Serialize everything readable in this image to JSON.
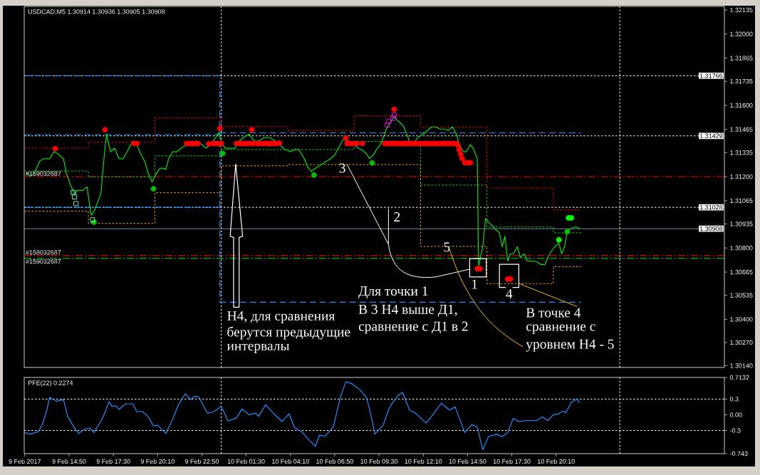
{
  "chart_data": [
    {
      "type": "line",
      "title": "USDCAD,M5  1.30914 1.30936 1.30905 1.30908",
      "xlim": [
        "2017-02-09T12:08",
        "2017-02-11T06:18"
      ],
      "ylim": [
        1.3013,
        1.32155
      ],
      "yticks": [
        1.32135,
        {
          "value": 1.32,
          "label": "1.32000"
        },
        1.31865,
        1.31735,
        {
          "value": 1.316,
          "label": "1.31600"
        },
        1.31465,
        1.31335,
        {
          "value": 1.312,
          "label": "1.31200"
        },
        1.31065,
        1.30935,
        {
          "value": 1.308,
          "label": "1.30800"
        },
        1.30665,
        1.30535,
        {
          "value": 1.304,
          "label": "1.30400"
        },
        {
          "value": 1.3027,
          "label": "1.30270"
        },
        {
          "value": 1.3014,
          "label": "1.30140"
        }
      ],
      "tick_labels": "y",
      "series": [
        {
          "type": "step",
          "color": "#ff0000",
          "line_style": "dotted",
          "x": [
            "2017-02-09T12:10",
            "2017-02-09T16:00",
            "2017-02-09T20:00",
            "2017-02-10T00:00",
            "2017-02-10T04:00",
            "2017-02-10T08:00",
            "2017-02-10T12:00",
            "2017-02-10T16:00",
            "2017-02-10T20:00",
            "2017-02-10T21:40"
          ],
          "values": [
            1.3136,
            1.31393,
            1.31529,
            1.31481,
            1.31459,
            1.31542,
            1.31479,
            1.31136,
            1.31013,
            1.31013
          ]
        },
        {
          "type": "step",
          "color": "#00e000",
          "line_style": "dotted",
          "x": [
            "2017-02-09T12:10",
            "2017-02-09T16:00",
            "2017-02-09T20:00",
            "2017-02-10T00:00",
            "2017-02-10T04:00",
            "2017-02-10T08:00",
            "2017-02-10T12:00",
            "2017-02-10T16:00",
            "2017-02-10T20:00",
            "2017-02-10T21:40"
          ],
          "values": [
            1.31232,
            1.31199,
            1.31317,
            1.31352,
            1.31352,
            1.31398,
            1.31153,
            1.30918,
            1.30885,
            1.30885
          ]
        },
        {
          "type": "step",
          "color": "#ffa500",
          "line_style": "dotted",
          "x": [
            "2017-02-09T12:10",
            "2017-02-09T16:00",
            "2017-02-09T20:00",
            "2017-02-10T00:00",
            "2017-02-10T04:00",
            "2017-02-10T08:00",
            "2017-02-10T12:00",
            "2017-02-10T16:00",
            "2017-02-10T20:00",
            "2017-02-10T21:40"
          ],
          "values": [
            1.31007,
            1.30938,
            1.3111,
            1.31261,
            1.31268,
            1.31268,
            1.30809,
            1.306,
            1.30695,
            1.30695
          ]
        },
        {
          "type": "line",
          "color": "#1e90ff",
          "line_style": "dashed",
          "x": [
            "2017-02-09T12:10",
            "2017-02-09T23:55"
          ],
          "values": [
            1.31766,
            1.31766
          ]
        },
        {
          "type": "line",
          "color": "#1e90ff",
          "line_style": "dashed",
          "x": [
            "2017-02-09T12:10",
            "2017-02-09T23:55"
          ],
          "values": [
            1.31436,
            1.31436
          ]
        },
        {
          "type": "line",
          "color": "#1e90ff",
          "line_style": "dashed",
          "x": [
            "2017-02-09T12:10",
            "2017-02-09T23:55"
          ],
          "values": [
            1.31028,
            1.31028
          ]
        },
        {
          "type": "line",
          "color": "#1e90ff",
          "line_style": "dashed",
          "x": [
            "2017-02-09T23:55",
            "2017-02-10T21:40"
          ],
          "values": [
            1.31446,
            1.31446
          ]
        },
        {
          "type": "line",
          "color": "#1e90ff",
          "line_style": "dashed",
          "x": [
            "2017-02-09T23:55",
            "2017-02-10T21:40"
          ],
          "values": [
            1.30496,
            1.30496
          ]
        },
        {
          "type": "line",
          "color": "#1e90ff",
          "line_style": "dashed",
          "x": [
            "2017-02-09T23:55",
            "2017-02-09T23:55"
          ],
          "values": [
            1.31736,
            1.30496
          ]
        },
        {
          "color": "#00e000",
          "x": [
            "2017-02-09T12:15",
            "2017-02-09T12:30",
            "2017-02-09T12:45",
            "2017-02-09T13:05",
            "2017-02-09T13:20",
            "2017-02-09T13:40",
            "2017-02-09T13:55",
            "2017-02-09T14:10",
            "2017-02-09T14:30",
            "2017-02-09T14:40",
            "2017-02-09T14:55",
            "2017-02-09T15:10",
            "2017-02-09T15:20",
            "2017-02-09T15:40",
            "2017-02-09T15:55",
            "2017-02-09T16:10",
            "2017-02-09T16:20",
            "2017-02-09T16:35",
            "2017-02-09T16:45",
            "2017-02-09T16:55",
            "2017-02-09T17:05",
            "2017-02-09T17:20",
            "2017-02-09T17:35",
            "2017-02-09T17:50",
            "2017-02-09T18:05",
            "2017-02-09T18:20",
            "2017-02-09T18:40",
            "2017-02-09T18:55",
            "2017-02-09T19:05",
            "2017-02-09T19:25",
            "2017-02-09T19:35",
            "2017-02-09T19:50",
            "2017-02-09T20:00",
            "2017-02-09T20:15",
            "2017-02-09T20:25",
            "2017-02-09T20:40",
            "2017-02-09T20:50",
            "2017-02-09T21:05",
            "2017-02-09T21:20",
            "2017-02-09T21:35",
            "2017-02-09T21:55",
            "2017-02-09T22:10",
            "2017-02-09T22:30",
            "2017-02-09T22:50",
            "2017-02-09T23:05",
            "2017-02-09T23:20",
            "2017-02-09T23:40",
            "2017-02-09T23:50",
            "2017-02-10T00:05",
            "2017-02-10T00:15",
            "2017-02-10T00:30",
            "2017-02-10T00:50",
            "2017-02-10T01:05",
            "2017-02-10T01:20",
            "2017-02-10T01:40",
            "2017-02-10T02:00",
            "2017-02-10T02:15",
            "2017-02-10T02:35",
            "2017-02-10T02:55",
            "2017-02-10T03:15",
            "2017-02-10T03:30",
            "2017-02-10T03:50",
            "2017-02-10T04:10",
            "2017-02-10T04:25",
            "2017-02-10T04:40",
            "2017-02-10T05:00",
            "2017-02-10T05:10",
            "2017-02-10T05:25",
            "2017-02-10T05:35",
            "2017-02-10T05:55",
            "2017-02-10T06:15",
            "2017-02-10T06:35",
            "2017-02-10T06:50",
            "2017-02-10T07:10",
            "2017-02-10T07:25",
            "2017-02-10T07:40",
            "2017-02-10T08:00",
            "2017-02-10T08:15",
            "2017-02-10T08:30",
            "2017-02-10T08:45",
            "2017-02-10T08:55",
            "2017-02-10T09:10",
            "2017-02-10T09:20",
            "2017-02-10T09:35",
            "2017-02-10T09:45",
            "2017-02-10T10:00",
            "2017-02-10T10:10",
            "2017-02-10T10:25",
            "2017-02-10T10:35",
            "2017-02-10T10:50",
            "2017-02-10T11:00",
            "2017-02-10T11:15",
            "2017-02-10T11:25",
            "2017-02-10T11:40",
            "2017-02-10T11:50",
            "2017-02-10T12:10",
            "2017-02-10T12:25",
            "2017-02-10T12:40",
            "2017-02-10T12:55",
            "2017-02-10T13:10",
            "2017-02-10T13:25",
            "2017-02-10T13:40",
            "2017-02-10T13:55",
            "2017-02-10T14:10",
            "2017-02-10T14:20",
            "2017-02-10T14:35",
            "2017-02-10T14:45",
            "2017-02-10T15:00",
            "2017-02-10T15:10",
            "2017-02-10T15:25",
            "2017-02-10T15:30",
            "2017-02-10T15:45",
            "2017-02-10T15:55",
            "2017-02-10T16:05",
            "2017-02-10T16:20",
            "2017-02-10T16:30",
            "2017-02-10T16:45",
            "2017-02-10T16:55",
            "2017-02-10T17:05",
            "2017-02-10T17:15",
            "2017-02-10T17:25",
            "2017-02-10T17:35",
            "2017-02-10T17:50",
            "2017-02-10T18:00",
            "2017-02-10T18:15",
            "2017-02-10T18:25",
            "2017-02-10T18:40",
            "2017-02-10T18:50",
            "2017-02-10T19:05",
            "2017-02-10T19:15",
            "2017-02-10T19:30",
            "2017-02-10T19:40",
            "2017-02-10T19:55",
            "2017-02-10T20:05",
            "2017-02-10T20:20",
            "2017-02-10T20:30",
            "2017-02-10T20:40",
            "2017-02-10T20:50",
            "2017-02-10T21:00",
            "2017-02-10T21:15",
            "2017-02-10T21:25",
            "2017-02-10T21:35"
          ],
          "values": [
            1.31222,
            1.31202,
            1.31222,
            1.31289,
            1.31301,
            1.31301,
            1.3134,
            1.31328,
            1.31301,
            1.31222,
            1.31154,
            1.31103,
            1.31123,
            1.31123,
            1.31143,
            1.30984,
            1.31004,
            1.31064,
            1.31103,
            1.31281,
            1.31439,
            1.3134,
            1.3136,
            1.31301,
            1.31301,
            1.3134,
            1.314,
            1.3138,
            1.3134,
            1.31281,
            1.31222,
            1.3117,
            1.31202,
            1.31241,
            1.31249,
            1.31241,
            1.31301,
            1.3134,
            1.3134,
            1.3136,
            1.3138,
            1.3138,
            1.314,
            1.3138,
            1.3136,
            1.3138,
            1.31419,
            1.31447,
            1.3138,
            1.3136,
            1.3136,
            1.3136,
            1.314,
            1.31419,
            1.31439,
            1.314,
            1.314,
            1.31419,
            1.31419,
            1.314,
            1.3138,
            1.31352,
            1.3134,
            1.31352,
            1.31352,
            1.31301,
            1.31261,
            1.31229,
            1.31241,
            1.31261,
            1.31281,
            1.31301,
            1.31321,
            1.3138,
            1.31419,
            1.314,
            1.3138,
            1.3136,
            1.31348,
            1.31328,
            1.31301,
            1.31321,
            1.31352,
            1.3138,
            1.31419,
            1.31479,
            1.31498,
            1.31538,
            1.31518,
            1.31498,
            1.31479,
            1.31419,
            1.3138,
            1.314,
            1.31419,
            1.31439,
            1.31459,
            1.31479,
            1.31479,
            1.31467,
            1.31467,
            1.31459,
            1.31479,
            1.31439,
            1.3138,
            1.3134,
            1.3134,
            1.3138,
            1.3136,
            1.31301,
            1.307,
            1.30807,
            1.30965,
            1.30945,
            1.30925,
            1.30905,
            1.30886,
            1.30807,
            1.30866,
            1.30727,
            1.30767,
            1.30767,
            1.30807,
            1.30747,
            1.30767,
            1.30727,
            1.30727,
            1.30727,
            1.30719,
            1.30707,
            1.30707,
            1.30747,
            1.30787,
            1.30807,
            1.30826,
            1.30767,
            1.30807,
            1.30886,
            1.30905,
            1.30917,
            1.30917,
            1.30908
          ]
        },
        {
          "type": "scatter",
          "marker": "circle",
          "color": "#ff0000",
          "x": [
            "2017-02-09T18:45",
            "2017-02-09T18:55",
            "2017-02-09T21:55",
            "2017-02-09T22:05",
            "2017-02-09T22:15",
            "2017-02-09T22:25",
            "2017-02-09T22:35",
            "2017-02-09T23:30",
            "2017-02-09T23:40",
            "2017-02-09T23:50",
            "2017-02-10T00:00",
            "2017-02-10T00:55",
            "2017-02-10T01:05",
            "2017-02-10T01:15",
            "2017-02-10T01:25",
            "2017-02-10T01:35",
            "2017-02-10T01:45",
            "2017-02-10T01:55",
            "2017-02-10T02:10",
            "2017-02-10T02:20",
            "2017-02-10T02:30",
            "2017-02-10T02:40",
            "2017-02-10T02:50",
            "2017-02-10T03:00",
            "2017-02-10T03:10",
            "2017-02-10T03:20",
            "2017-02-10T07:35",
            "2017-02-10T07:45",
            "2017-02-10T07:55",
            "2017-02-10T09:50",
            "2017-02-10T10:00",
            "2017-02-10T10:10",
            "2017-02-10T10:20",
            "2017-02-10T10:30",
            "2017-02-10T10:40",
            "2017-02-10T10:50",
            "2017-02-10T11:00",
            "2017-02-10T11:10",
            "2017-02-10T11:20",
            "2017-02-10T11:30",
            "2017-02-10T11:40",
            "2017-02-10T11:50",
            "2017-02-10T12:00",
            "2017-02-10T12:10",
            "2017-02-10T12:20",
            "2017-02-10T12:30",
            "2017-02-10T12:40",
            "2017-02-10T12:50",
            "2017-02-10T13:00",
            "2017-02-10T13:10",
            "2017-02-10T13:20",
            "2017-02-10T13:30",
            "2017-02-10T13:40",
            "2017-02-10T13:50",
            "2017-02-10T14:00",
            "2017-02-10T14:10",
            "2017-02-10T14:40",
            "2017-02-10T14:50",
            "2017-02-10T15:00",
            "2017-02-10T15:25",
            "2017-02-10T15:35",
            "2017-02-10T17:15",
            "2017-02-10T17:25"
          ],
          "values": [
            1.31386,
            1.31386,
            1.31386,
            1.31386,
            1.31386,
            1.31386,
            1.31386,
            1.31386,
            1.31386,
            1.31386,
            1.31386,
            1.31386,
            1.31386,
            1.31386,
            1.31386,
            1.31386,
            1.31386,
            1.31386,
            1.31386,
            1.31386,
            1.31386,
            1.31386,
            1.31386,
            1.31386,
            1.31386,
            1.31386,
            1.31386,
            1.31386,
            1.31386,
            1.31386,
            1.31386,
            1.31386,
            1.31386,
            1.31386,
            1.31386,
            1.31386,
            1.31386,
            1.31386,
            1.31386,
            1.31386,
            1.31386,
            1.31386,
            1.31386,
            1.31386,
            1.31386,
            1.31386,
            1.31386,
            1.31386,
            1.31386,
            1.31386,
            1.31386,
            1.31386,
            1.31386,
            1.31386,
            1.31386,
            1.31386,
            1.31278,
            1.31278,
            1.31278,
            1.30684,
            1.30684,
            1.30626,
            1.30626
          ]
        },
        {
          "type": "scatter",
          "marker": "circle",
          "color": "#ff0000",
          "x": [
            "2017-02-09T14:00",
            "2017-02-09T17:00",
            "2017-02-09T23:15",
            "2017-02-09T23:55",
            "2017-02-10T01:50",
            "2017-02-10T03:30",
            "2017-02-10T07:30",
            "2017-02-10T08:10",
            "2017-02-10T08:30",
            "2017-02-10T10:25",
            "2017-02-10T11:15",
            "2017-02-10T14:15",
            "2017-02-10T14:20",
            "2017-02-10T14:25",
            "2017-02-10T14:30"
          ],
          "values": [
            1.31357,
            1.31463,
            1.31384,
            1.31471,
            1.31463,
            1.31388,
            1.31415,
            1.31386,
            1.31386,
            1.31578,
            1.31386,
            1.31376,
            1.31351,
            1.31326,
            1.31302
          ]
        },
        {
          "type": "scatter",
          "marker": "circle",
          "color": "#00c000",
          "x": [
            "2017-02-09T16:20",
            "2017-02-09T19:55",
            "2017-02-10T00:05",
            "2017-02-10T05:35",
            "2017-02-10T09:05",
            "2017-02-10T20:50"
          ],
          "values": [
            1.30945,
            1.31132,
            1.3133,
            1.31209,
            1.31277,
            1.30892
          ]
        },
        {
          "type": "scatter",
          "marker": "circle",
          "color": "#00ff00",
          "x": [
            "2017-02-10T20:20",
            "2017-02-10T20:55",
            "2017-02-10T21:05"
          ],
          "values": [
            1.30846,
            1.30969,
            1.30969
          ]
        },
        {
          "type": "scatter",
          "marker": "square",
          "color": "#ff00ff",
          "x": [
            "2017-02-10T10:00",
            "2017-02-10T10:05",
            "2017-02-10T10:20",
            "2017-02-10T10:25"
          ],
          "values": [
            1.31489,
            1.31511,
            1.31527,
            1.31545
          ]
        },
        {
          "type": "scatter",
          "marker": "square",
          "color": "#7fffd4",
          "x": [
            "2017-02-09T15:05",
            "2017-02-09T15:10",
            "2017-02-09T15:15",
            "2017-02-09T16:15"
          ],
          "values": [
            1.31112,
            1.31086,
            1.31049,
            1.30958
          ]
        }
      ],
      "ref_lines": [
        {
          "axis": "y",
          "value": 1.31766,
          "label": "1.31766",
          "color": "#ffffff",
          "line_style": "dotted"
        },
        {
          "axis": "y",
          "value": 1.31429,
          "label": "1.31429",
          "color": "#ffffff",
          "line_style": "dotted"
        },
        {
          "axis": "y",
          "value": 1.31028,
          "label": "1.31028",
          "color": "#ffffff",
          "line_style": "dotted"
        },
        {
          "axis": "y",
          "value": 1.30908,
          "label": "1.30908",
          "color": "#778899",
          "line_style": "solid"
        },
        {
          "axis": "y",
          "value": 1.312,
          "color": "#ff0000",
          "line_style": "dashdot"
        },
        {
          "axis": "y",
          "value": 1.30758,
          "color": "#ff0000",
          "line_style": "dashdot"
        },
        {
          "axis": "y",
          "value": 1.30742,
          "color": "#00e000",
          "line_style": "dashdot"
        },
        {
          "axis": "x",
          "value": "2017-02-10T00:00",
          "color": "#ffffff",
          "line_style": "dotted"
        },
        {
          "axis": "x",
          "value": "2017-02-11T00:00",
          "color": "#ffffff",
          "line_style": "dotted"
        }
      ],
      "annotations": [
        {
          "text": "#159032687",
          "x": "2017-02-09T12:10",
          "y": 1.312
        },
        {
          "text": "#158032687",
          "x": "2017-02-09T12:10",
          "y": 1.30758
        },
        {
          "text": "#159032687",
          "x": "2017-02-09T12:10",
          "y": 1.30742
        },
        {
          "text": "3",
          "x": "2017-02-10T07:35",
          "y": 1.31268
        },
        {
          "text": "2",
          "x": "2017-02-10T10:05",
          "y": 1.31028
        },
        {
          "text": "5",
          "x": "2017-02-10T13:35",
          "y": 1.30809
        },
        {
          "text": "1",
          "x": "2017-02-10T15:25",
          "y": 1.30684
        },
        {
          "text": "4",
          "x": "2017-02-10T17:55",
          "y": 1.306
        },
        {
          "text": "H4, для сравнения",
          "x": "2017-02-10T00:55",
          "y": 1.31261
        },
        "берутся предыдущие",
        "интервалы",
        "Для точки 1",
        "В 3 H4 выше Д1,",
        "сравнение с Д1 в 2",
        {
          "text": "В точке 4",
          "x": "2017-02-10T17:55",
          "y": 1.306
        },
        "сравнение с",
        {
          "text": "уровнем H4 - 5",
          "x": "2017-02-10T13:40",
          "y": 1.30809
        }
      ]
    },
    {
      "type": "line",
      "title": "PFE(22) 0.2274",
      "xlim": [
        "2017-02-09T12:08",
        "2017-02-11T06:18"
      ],
      "ylim": [
        -0.743,
        0.7132
      ],
      "xticks": [
        {
          "value": "2017-02-09T12:10",
          "label": "9 Feb 2017"
        },
        {
          "value": "2017-02-09T14:50",
          "label": "9 Feb 14:50"
        },
        {
          "value": "2017-02-09T17:30",
          "label": "9 Feb 17:30"
        },
        {
          "value": "2017-02-09T20:10",
          "label": "9 Feb 20:10"
        },
        {
          "value": "2017-02-09T22:50",
          "label": "9 Feb 22:50"
        },
        {
          "value": "2017-02-10T01:30",
          "label": "10 Feb 01:30"
        },
        {
          "value": "2017-02-10T04:10",
          "label": "10 Feb 04:10"
        },
        {
          "value": "2017-02-10T06:50",
          "label": "10 Feb 06:50"
        },
        {
          "value": "2017-02-10T09:30",
          "label": "10 Feb 09:30"
        },
        {
          "value": "2017-02-10T12:10",
          "label": "10 Feb 12:10"
        },
        {
          "value": "2017-02-10T14:50",
          "label": "10 Feb 14:50"
        },
        {
          "value": "2017-02-10T17:30",
          "label": "10 Feb 17:30"
        },
        {
          "value": "2017-02-10T20:10",
          "label": "10 Feb 20:10"
        }
      ],
      "yticks": [
        0.7132,
        0.3,
        {
          "value": 0,
          "label": "0.00"
        },
        -0.3,
        -0.743
      ],
      "series": [
        {
          "color": "#1e90ff",
          "x": [
            "2017-02-09T12:10",
            "2017-02-09T12:30",
            "2017-02-09T13:00",
            "2017-02-09T13:15",
            "2017-02-09T13:30",
            "2017-02-09T13:40",
            "2017-02-09T14:05",
            "2017-02-09T14:30",
            "2017-02-09T14:45",
            "2017-02-09T15:05",
            "2017-02-09T15:25",
            "2017-02-09T15:40",
            "2017-02-09T16:05",
            "2017-02-09T16:20",
            "2017-02-09T16:50",
            "2017-02-09T17:15",
            "2017-02-09T17:25",
            "2017-02-09T17:40",
            "2017-02-09T17:50",
            "2017-02-09T18:15",
            "2017-02-09T18:40",
            "2017-02-09T18:55",
            "2017-02-09T19:15",
            "2017-02-09T19:35",
            "2017-02-09T19:55",
            "2017-02-09T20:10",
            "2017-02-09T20:40",
            "2017-02-09T21:05",
            "2017-02-09T21:25",
            "2017-02-09T21:50",
            "2017-02-09T22:10",
            "2017-02-09T22:25",
            "2017-02-09T22:40",
            "2017-02-09T23:10",
            "2017-02-09T23:30",
            "2017-02-10T00:00",
            "2017-02-10T00:25",
            "2017-02-10T00:55",
            "2017-02-10T01:15",
            "2017-02-10T01:40",
            "2017-02-10T02:05",
            "2017-02-10T02:15",
            "2017-02-10T02:40",
            "2017-02-10T03:10",
            "2017-02-10T03:40",
            "2017-02-10T04:05",
            "2017-02-10T04:25",
            "2017-02-10T04:50",
            "2017-02-10T05:15",
            "2017-02-10T05:40",
            "2017-02-10T05:55",
            "2017-02-10T06:15",
            "2017-02-10T06:45",
            "2017-02-10T07:10",
            "2017-02-10T07:30",
            "2017-02-10T07:50",
            "2017-02-10T08:20",
            "2017-02-10T08:45",
            "2017-02-10T09:00",
            "2017-02-10T09:15",
            "2017-02-10T09:45",
            "2017-02-10T10:05",
            "2017-02-10T10:15",
            "2017-02-10T10:40",
            "2017-02-10T10:55",
            "2017-02-10T11:20",
            "2017-02-10T11:40",
            "2017-02-10T12:20",
            "2017-02-10T12:40",
            "2017-02-10T13:15",
            "2017-02-10T13:45",
            "2017-02-10T14:05",
            "2017-02-10T14:40",
            "2017-02-10T15:05",
            "2017-02-10T15:25",
            "2017-02-10T15:45",
            "2017-02-10T16:05",
            "2017-02-10T16:35",
            "2017-02-10T16:55",
            "2017-02-10T17:15",
            "2017-02-10T17:35",
            "2017-02-10T17:55",
            "2017-02-10T18:25",
            "2017-02-10T19:00",
            "2017-02-10T19:20",
            "2017-02-10T19:40",
            "2017-02-10T20:00",
            "2017-02-10T20:15",
            "2017-02-10T20:35",
            "2017-02-10T20:45",
            "2017-02-10T21:05",
            "2017-02-10T21:25",
            "2017-02-10T21:35"
          ],
          "values": [
            -0.34,
            -0.37,
            -0.32,
            -0.16,
            0.1,
            0.33,
            0.26,
            0.29,
            -0.03,
            -0.21,
            -0.36,
            -0.29,
            -0.25,
            -0.34,
            -0.08,
            0.25,
            0.16,
            0.17,
            0.1,
            0.21,
            0.21,
            0.06,
            0.06,
            -0.03,
            -0.21,
            -0.2,
            -0.36,
            -0.08,
            0.19,
            0.4,
            0.29,
            0.36,
            0.33,
            0.03,
            0.05,
            0.16,
            -0.12,
            -0.06,
            0.11,
            0,
            0.03,
            -0.03,
            0.19,
            0.02,
            -0.13,
            0.02,
            -0.25,
            -0.32,
            -0.47,
            -0.6,
            -0.39,
            -0.41,
            -0.23,
            0.33,
            0.63,
            0.6,
            0.48,
            0.33,
            0.01,
            -0.37,
            -0.2,
            0.1,
            0.2,
            0.37,
            0.43,
            0.09,
            0.04,
            -0.16,
            -0.03,
            0.22,
            0.09,
            0.15,
            -0.34,
            -0.19,
            -0.23,
            -0.67,
            -0.42,
            -0.37,
            -0.42,
            -0.34,
            -0.07,
            -0.13,
            -0.11,
            -0.11,
            -0.04,
            -0.11,
            0,
            0.01,
            0.07,
            0.04,
            0.24,
            0.3,
            0.2274
          ]
        }
      ],
      "ref_lines": [
        {
          "axis": "y",
          "value": 0.3,
          "color": "#ffffff",
          "line_style": "dotted"
        },
        {
          "axis": "y",
          "value": -0.3,
          "color": "#ffffff",
          "line_style": "dotted"
        },
        {
          "axis": "x",
          "value": "2017-02-10T00:00",
          "color": "#ffffff",
          "line_style": "dotted"
        },
        {
          "axis": "x",
          "value": "2017-02-11T00:00",
          "color": "#ffffff",
          "line_style": "dotted"
        }
      ]
    }
  ]
}
